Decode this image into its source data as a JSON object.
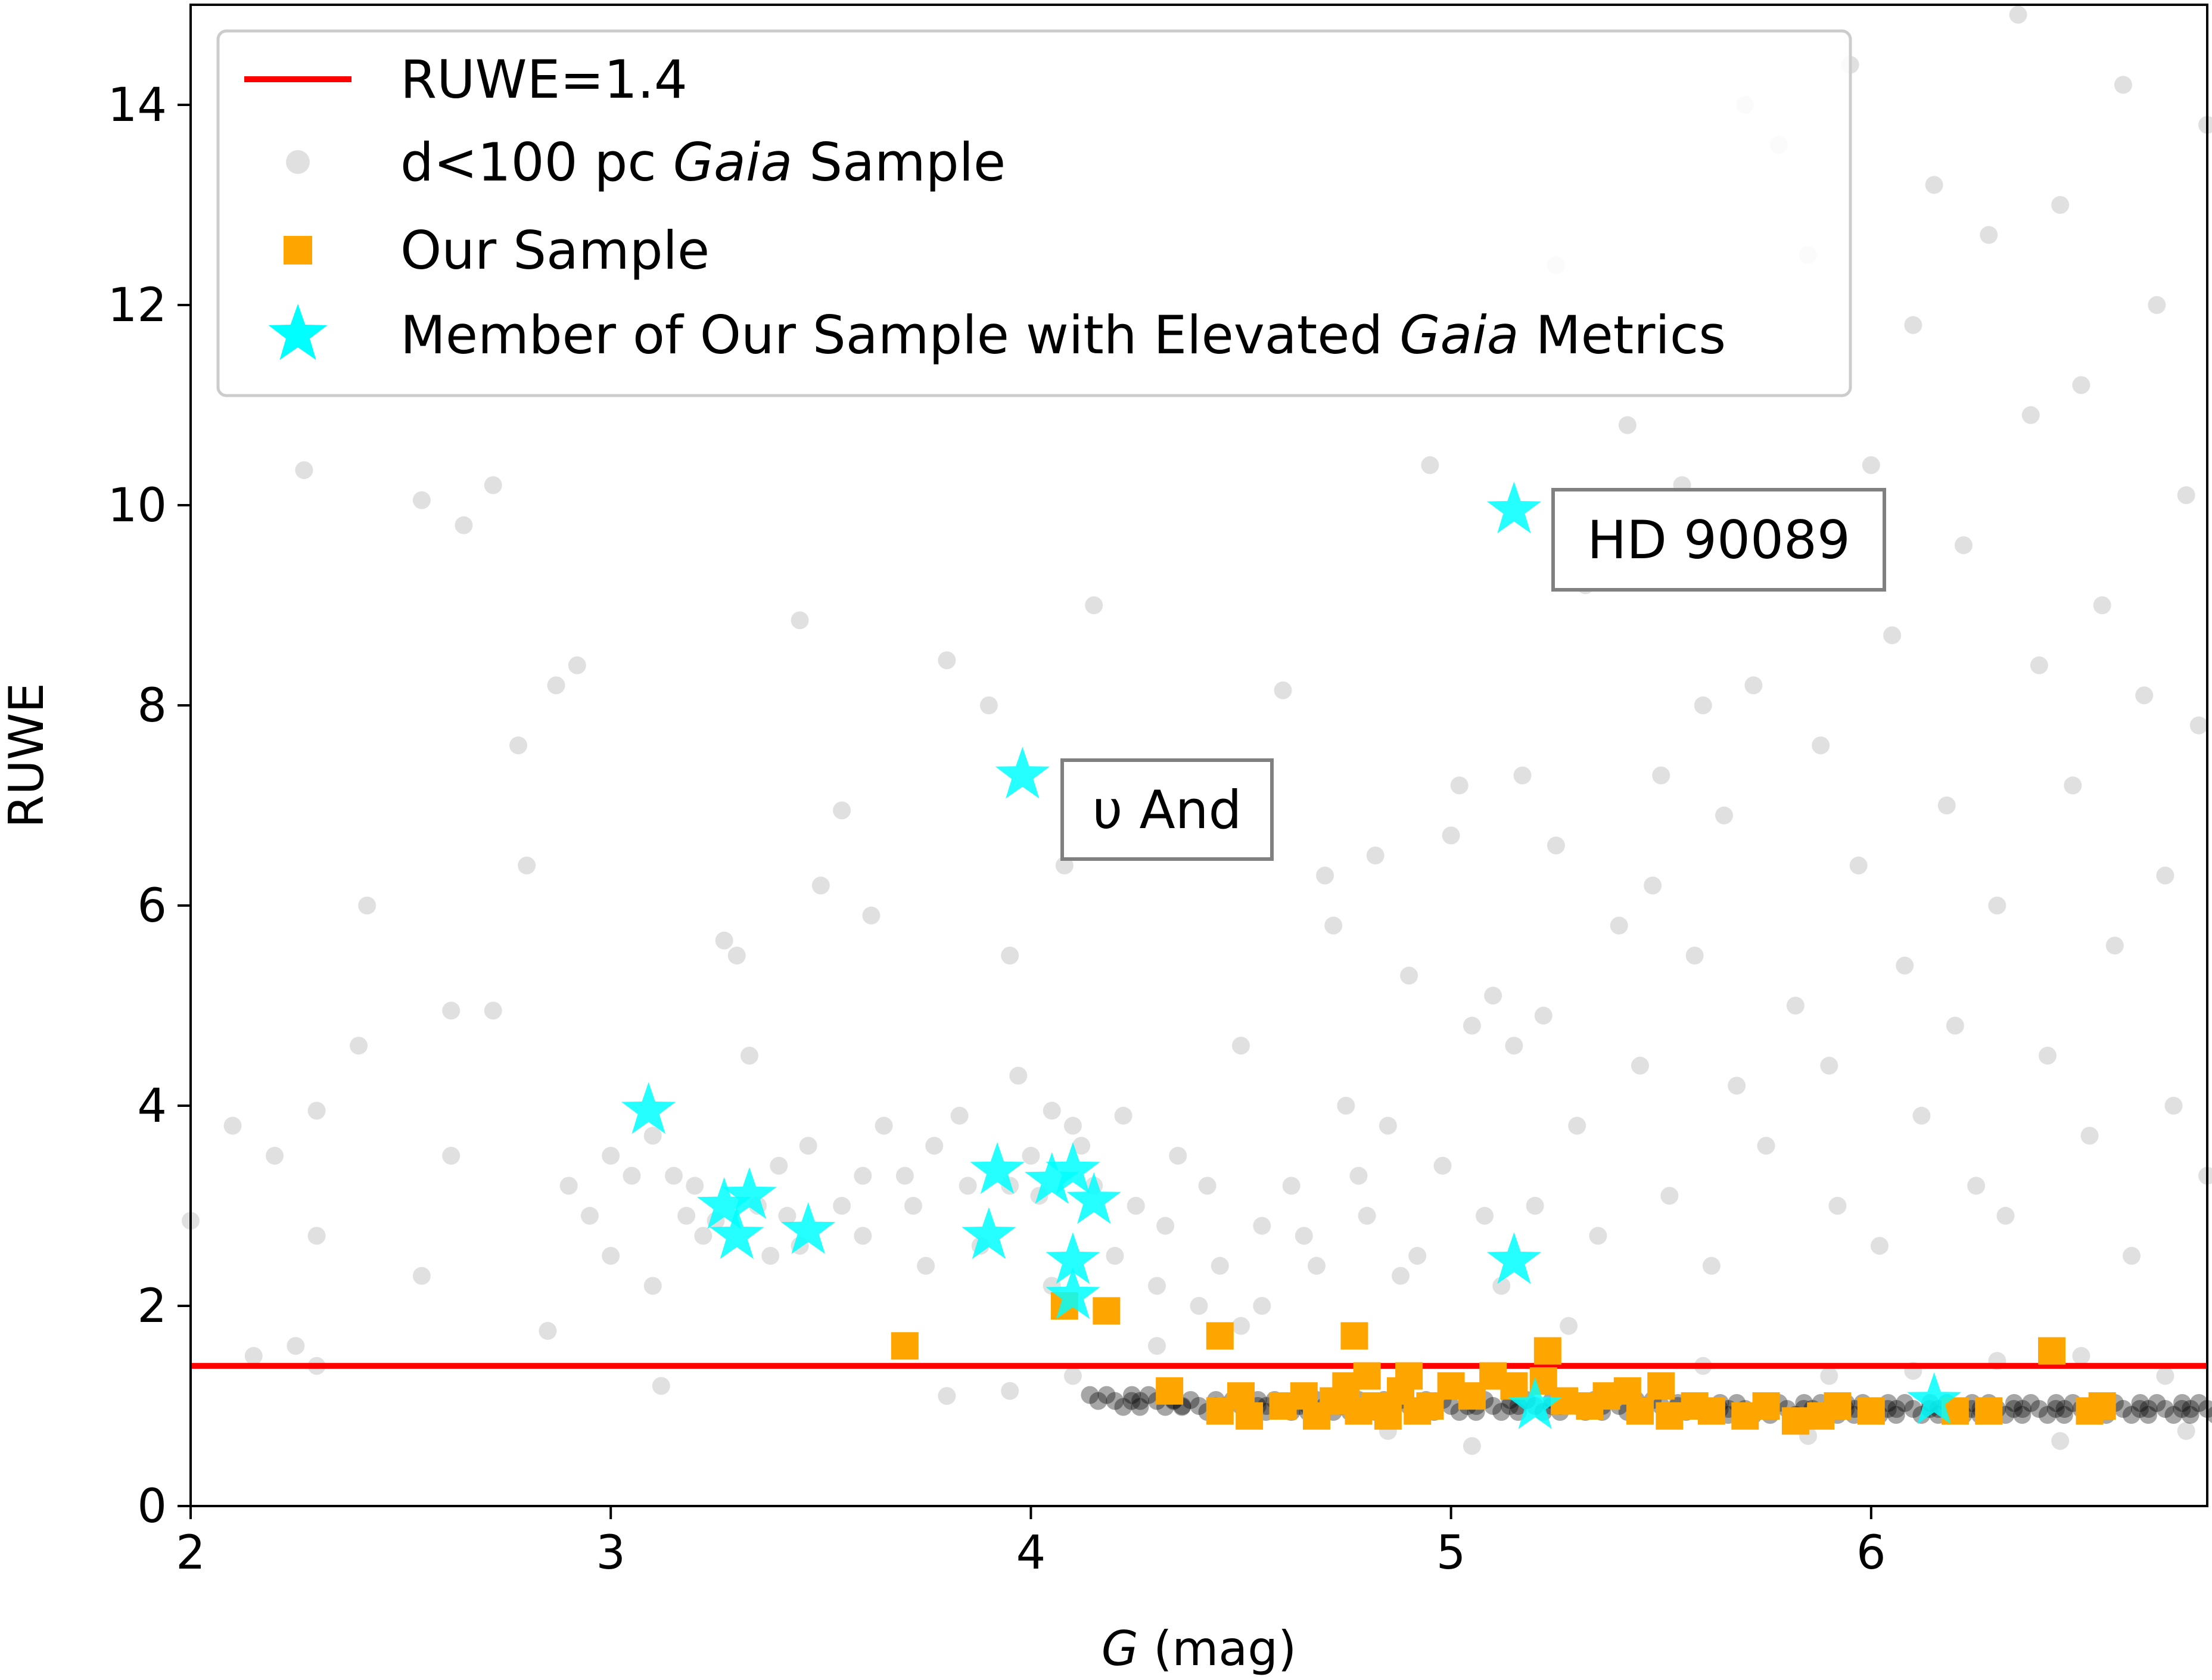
{
  "chart_data": {
    "type": "scatter",
    "xlabel": {
      "italic": "G",
      "rest": " (mag)"
    },
    "ylabel": "RUWE",
    "xlim": [
      2.0,
      6.8
    ],
    "ylim": [
      0,
      15
    ],
    "xticks": [
      2,
      3,
      4,
      5,
      6
    ],
    "yticks": [
      0,
      2,
      4,
      6,
      8,
      10,
      12,
      14
    ],
    "grid": false,
    "legend_placement": "top-left",
    "threshold": {
      "name": "RUWE=1.4",
      "y": 1.4,
      "color": "#ff0000"
    },
    "legend": [
      {
        "marker": "line",
        "color": "#ff0000",
        "parts": [
          {
            "t": "RUWE=1.4"
          }
        ]
      },
      {
        "marker": "circle",
        "color": "#000000",
        "parts": [
          {
            "t": "d<100 pc "
          },
          {
            "t": "Gaia",
            "i": true
          },
          {
            "t": " Sample"
          }
        ]
      },
      {
        "marker": "square",
        "color": "#ffa500",
        "parts": [
          {
            "t": "Our Sample"
          }
        ]
      },
      {
        "marker": "star",
        "color": "#00ffff",
        "parts": [
          {
            "t": "Member of Our Sample with Elevated "
          },
          {
            "t": "Gaia",
            "i": true
          },
          {
            "t": " Metrics"
          }
        ]
      }
    ],
    "annotations": [
      {
        "text": "HD 90089",
        "x": 5.15,
        "y": 9.95
      },
      {
        "text": "υ And",
        "x": 3.98,
        "y": 7.3
      }
    ],
    "series": [
      {
        "name": "d<100 pc Gaia Sample",
        "color": "#000000",
        "points": [
          [
            2.0,
            2.85
          ],
          [
            2.1,
            3.8
          ],
          [
            2.15,
            1.5
          ],
          [
            2.2,
            3.5
          ],
          [
            2.27,
            10.35
          ],
          [
            2.25,
            1.6
          ],
          [
            2.3,
            1.4
          ],
          [
            2.3,
            2.7
          ],
          [
            2.3,
            3.95
          ],
          [
            2.4,
            4.6
          ],
          [
            2.42,
            6.0
          ],
          [
            2.55,
            10.05
          ],
          [
            2.55,
            2.3
          ],
          [
            2.62,
            3.5
          ],
          [
            2.62,
            4.95
          ],
          [
            2.65,
            9.8
          ],
          [
            2.72,
            10.2
          ],
          [
            2.72,
            4.95
          ],
          [
            2.78,
            7.6
          ],
          [
            2.8,
            6.4
          ],
          [
            2.85,
            1.75
          ],
          [
            2.87,
            8.2
          ],
          [
            2.92,
            8.4
          ],
          [
            2.9,
            3.2
          ],
          [
            2.95,
            2.9
          ],
          [
            3.0,
            3.5
          ],
          [
            3.0,
            2.5
          ],
          [
            3.05,
            3.3
          ],
          [
            3.1,
            3.7
          ],
          [
            3.1,
            2.2
          ],
          [
            3.12,
            1.2
          ],
          [
            3.15,
            3.3
          ],
          [
            3.2,
            3.2
          ],
          [
            3.18,
            2.9
          ],
          [
            3.22,
            2.7
          ],
          [
            3.25,
            2.85
          ],
          [
            3.27,
            5.65
          ],
          [
            3.3,
            5.5
          ],
          [
            3.33,
            4.5
          ],
          [
            3.35,
            3.0
          ],
          [
            3.38,
            2.5
          ],
          [
            3.4,
            3.4
          ],
          [
            3.42,
            2.9
          ],
          [
            3.45,
            2.6
          ],
          [
            3.47,
            3.6
          ],
          [
            3.5,
            6.2
          ],
          [
            3.55,
            3.0
          ],
          [
            3.55,
            6.95
          ],
          [
            3.45,
            8.85
          ],
          [
            3.6,
            3.3
          ],
          [
            3.6,
            2.7
          ],
          [
            3.62,
            5.9
          ],
          [
            3.65,
            3.8
          ],
          [
            3.7,
            3.3
          ],
          [
            3.72,
            3.0
          ],
          [
            3.75,
            2.4
          ],
          [
            3.77,
            3.6
          ],
          [
            3.8,
            8.45
          ],
          [
            3.83,
            3.9
          ],
          [
            3.85,
            3.2
          ],
          [
            3.88,
            2.6
          ],
          [
            3.9,
            8.0
          ],
          [
            3.95,
            3.2
          ],
          [
            3.95,
            5.5
          ],
          [
            3.97,
            4.3
          ],
          [
            4.0,
            3.5
          ],
          [
            4.02,
            3.1
          ],
          [
            4.05,
            2.2
          ],
          [
            4.05,
            3.95
          ],
          [
            4.08,
            6.4
          ],
          [
            4.1,
            3.8
          ],
          [
            4.12,
            3.6
          ],
          [
            4.15,
            9.0
          ],
          [
            4.15,
            3.2
          ],
          [
            4.2,
            2.5
          ],
          [
            4.22,
            3.9
          ],
          [
            4.25,
            3.0
          ],
          [
            4.3,
            2.2
          ],
          [
            4.32,
            2.8
          ],
          [
            4.35,
            3.5
          ],
          [
            4.4,
            2.0
          ],
          [
            4.42,
            3.2
          ],
          [
            4.45,
            2.4
          ],
          [
            4.5,
            4.6
          ],
          [
            4.55,
            2.0
          ],
          [
            4.55,
            2.8
          ],
          [
            4.6,
            8.15
          ],
          [
            4.62,
            3.2
          ],
          [
            4.65,
            2.7
          ],
          [
            4.68,
            2.4
          ],
          [
            4.7,
            6.3
          ],
          [
            4.72,
            5.8
          ],
          [
            4.75,
            4.0
          ],
          [
            4.78,
            3.3
          ],
          [
            4.8,
            2.9
          ],
          [
            4.82,
            6.5
          ],
          [
            4.85,
            3.8
          ],
          [
            4.88,
            2.3
          ],
          [
            4.9,
            5.3
          ],
          [
            4.92,
            2.5
          ],
          [
            4.95,
            10.4
          ],
          [
            4.98,
            3.4
          ],
          [
            5.0,
            6.7
          ],
          [
            5.02,
            7.2
          ],
          [
            5.05,
            4.8
          ],
          [
            5.08,
            2.9
          ],
          [
            5.1,
            5.1
          ],
          [
            5.12,
            2.2
          ],
          [
            5.15,
            4.6
          ],
          [
            5.17,
            7.3
          ],
          [
            5.2,
            3.0
          ],
          [
            5.22,
            4.9
          ],
          [
            5.25,
            12.4
          ],
          [
            5.25,
            6.6
          ],
          [
            5.28,
            1.8
          ],
          [
            5.3,
            3.8
          ],
          [
            5.32,
            9.2
          ],
          [
            5.35,
            2.7
          ],
          [
            5.4,
            5.8
          ],
          [
            5.42,
            10.8
          ],
          [
            5.45,
            4.4
          ],
          [
            5.48,
            6.2
          ],
          [
            5.5,
            7.3
          ],
          [
            5.52,
            3.1
          ],
          [
            5.55,
            10.2
          ],
          [
            5.58,
            5.5
          ],
          [
            5.6,
            8.0
          ],
          [
            5.62,
            2.4
          ],
          [
            5.65,
            6.9
          ],
          [
            5.68,
            4.2
          ],
          [
            5.7,
            14.0
          ],
          [
            5.72,
            8.2
          ],
          [
            5.75,
            3.6
          ],
          [
            5.78,
            13.6
          ],
          [
            5.8,
            9.3
          ],
          [
            5.82,
            5.0
          ],
          [
            5.85,
            12.5
          ],
          [
            5.88,
            7.6
          ],
          [
            5.9,
            4.4
          ],
          [
            5.92,
            3.0
          ],
          [
            5.95,
            14.4
          ],
          [
            5.97,
            6.4
          ],
          [
            6.0,
            10.4
          ],
          [
            6.02,
            2.6
          ],
          [
            6.05,
            8.7
          ],
          [
            6.08,
            5.4
          ],
          [
            6.1,
            11.8
          ],
          [
            6.12,
            3.9
          ],
          [
            6.15,
            13.2
          ],
          [
            6.18,
            7.0
          ],
          [
            6.2,
            4.8
          ],
          [
            6.22,
            9.6
          ],
          [
            6.25,
            3.2
          ],
          [
            6.28,
            12.7
          ],
          [
            6.3,
            6.0
          ],
          [
            6.32,
            2.9
          ],
          [
            6.35,
            14.9
          ],
          [
            6.38,
            10.9
          ],
          [
            6.4,
            8.4
          ],
          [
            6.42,
            4.5
          ],
          [
            6.45,
            13.0
          ],
          [
            6.48,
            7.2
          ],
          [
            6.5,
            11.2
          ],
          [
            6.52,
            3.7
          ],
          [
            6.55,
            9.0
          ],
          [
            6.58,
            5.6
          ],
          [
            6.6,
            14.2
          ],
          [
            6.62,
            2.5
          ],
          [
            6.65,
            8.1
          ],
          [
            6.68,
            12.0
          ],
          [
            6.7,
            6.3
          ],
          [
            6.72,
            4.0
          ],
          [
            6.75,
            10.1
          ],
          [
            6.78,
            7.8
          ],
          [
            6.8,
            13.8
          ],
          [
            6.8,
            3.3
          ],
          [
            5.6,
            1.4
          ],
          [
            5.9,
            1.3
          ],
          [
            6.1,
            1.35
          ],
          [
            6.3,
            1.45
          ],
          [
            6.5,
            1.5
          ],
          [
            6.7,
            1.3
          ],
          [
            4.5,
            1.8
          ],
          [
            4.3,
            1.6
          ],
          [
            3.8,
            1.1
          ],
          [
            3.95,
            1.15
          ],
          [
            4.1,
            1.3
          ],
          [
            5.05,
            0.6
          ],
          [
            5.85,
            0.7
          ],
          [
            6.45,
            0.65
          ],
          [
            6.75,
            0.75
          ],
          [
            4.85,
            0.75
          ]
        ],
        "dense_band": [
          [
            4.2,
            1.05
          ],
          [
            4.3,
            1.05
          ],
          [
            4.4,
            1.0
          ],
          [
            4.5,
            1.0
          ],
          [
            4.6,
            1.0
          ],
          [
            4.7,
            1.0
          ],
          [
            4.8,
            1.0
          ],
          [
            4.9,
            1.0
          ],
          [
            5.0,
            1.0
          ],
          [
            5.1,
            1.0
          ],
          [
            5.2,
            1.0
          ],
          [
            5.3,
            1.0
          ],
          [
            5.4,
            1.0
          ],
          [
            5.5,
            1.0
          ],
          [
            5.6,
            0.97
          ],
          [
            5.7,
            0.97
          ],
          [
            5.8,
            0.97
          ],
          [
            5.9,
            0.97
          ],
          [
            6.0,
            0.97
          ],
          [
            6.1,
            0.97
          ],
          [
            6.2,
            0.97
          ],
          [
            6.3,
            0.97
          ],
          [
            6.4,
            0.97
          ],
          [
            6.5,
            0.97
          ],
          [
            6.6,
            0.97
          ],
          [
            6.7,
            0.97
          ],
          [
            6.8,
            0.97
          ]
        ]
      },
      {
        "name": "Our Sample",
        "color": "#ffa500",
        "points": [
          [
            3.7,
            1.6
          ],
          [
            4.08,
            2.0
          ],
          [
            4.18,
            1.95
          ],
          [
            4.45,
            1.7
          ],
          [
            4.77,
            1.7
          ],
          [
            5.23,
            1.55
          ],
          [
            6.43,
            1.55
          ],
          [
            4.33,
            1.15
          ],
          [
            4.45,
            0.95
          ],
          [
            4.52,
            0.9
          ],
          [
            4.5,
            1.1
          ],
          [
            4.6,
            1.0
          ],
          [
            4.65,
            1.1
          ],
          [
            4.68,
            0.9
          ],
          [
            4.72,
            1.05
          ],
          [
            4.75,
            1.2
          ],
          [
            4.78,
            0.95
          ],
          [
            4.8,
            1.3
          ],
          [
            4.82,
            1.0
          ],
          [
            4.85,
            0.9
          ],
          [
            4.88,
            1.15
          ],
          [
            4.9,
            1.3
          ],
          [
            4.92,
            0.95
          ],
          [
            4.95,
            1.0
          ],
          [
            5.0,
            1.2
          ],
          [
            5.05,
            1.1
          ],
          [
            5.1,
            1.3
          ],
          [
            5.15,
            1.2
          ],
          [
            5.22,
            1.25
          ],
          [
            5.27,
            1.05
          ],
          [
            5.33,
            1.0
          ],
          [
            5.37,
            1.1
          ],
          [
            5.42,
            1.15
          ],
          [
            5.45,
            0.95
          ],
          [
            5.5,
            1.2
          ],
          [
            5.52,
            0.9
          ],
          [
            5.58,
            1.0
          ],
          [
            5.62,
            0.95
          ],
          [
            5.7,
            0.9
          ],
          [
            5.75,
            1.0
          ],
          [
            5.82,
            0.85
          ],
          [
            5.88,
            0.9
          ],
          [
            5.92,
            1.0
          ],
          [
            6.0,
            0.95
          ],
          [
            6.2,
            0.95
          ],
          [
            6.28,
            0.95
          ],
          [
            6.52,
            0.95
          ],
          [
            6.55,
            1.0
          ]
        ]
      },
      {
        "name": "Member of Our Sample with Elevated Gaia Metrics",
        "color": "#00ffff",
        "points": [
          [
            5.15,
            9.95
          ],
          [
            3.98,
            7.3
          ],
          [
            3.09,
            3.95
          ],
          [
            3.27,
            3.0
          ],
          [
            3.33,
            3.1
          ],
          [
            3.3,
            2.7
          ],
          [
            3.47,
            2.75
          ],
          [
            3.92,
            3.35
          ],
          [
            3.9,
            2.7
          ],
          [
            4.05,
            3.25
          ],
          [
            4.1,
            3.35
          ],
          [
            4.15,
            3.05
          ],
          [
            4.1,
            2.45
          ],
          [
            4.1,
            2.1
          ],
          [
            5.15,
            2.45
          ],
          [
            5.2,
            1.0
          ],
          [
            6.15,
            1.05
          ]
        ]
      }
    ]
  }
}
